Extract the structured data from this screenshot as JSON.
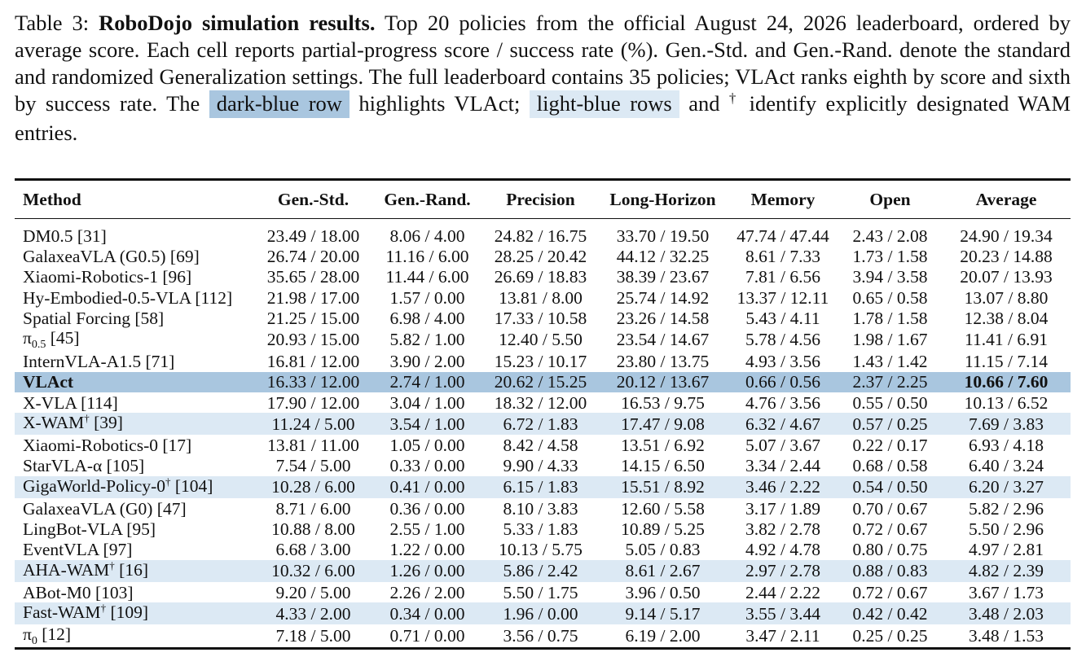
{
  "caption": {
    "label": "Table 3:",
    "title": "RoboDojo simulation results.",
    "body": "Top 20 policies from the official August 24, 2026 leaderboard, ordered by average score. Each cell reports partial-progress score / success rate (%). Gen.-Std. and Gen.-Rand. denote the standard and randomized Generalization settings. The full leaderboard contains 35 policies; VLAct ranks eighth by score and sixth by success rate. The",
    "dark_label": "dark-blue row",
    "mid": "highlights VLAct;",
    "light_label": "light-blue rows",
    "and": "and",
    "dagger": "†",
    "tail": "identify explicitly designated WAM entries."
  },
  "colors": {
    "dark_row": "#a9c6df",
    "light_row": "#dce9f4"
  },
  "table": {
    "headers": [
      "Method",
      "Gen.-Std.",
      "Gen.-Rand.",
      "Precision",
      "Long-Horizon",
      "Memory",
      "Open",
      "Average"
    ],
    "rows": [
      {
        "name": "DM0.5",
        "sub": "",
        "ref": " [31]",
        "cells": [
          "23.49 / 18.00",
          "8.06 / 4.00",
          "24.82 / 16.75",
          "33.70 / 19.50",
          "47.74 / 47.44",
          "2.43 / 2.08",
          "24.90 / 19.34"
        ],
        "style": "plain"
      },
      {
        "name": "GalaxeaVLA (G0.5)",
        "sub": "",
        "ref": " [69]",
        "cells": [
          "26.74 / 20.00",
          "11.16 / 6.00",
          "28.25 / 20.42",
          "44.12 / 32.25",
          "8.61 / 7.33",
          "1.73 / 1.58",
          "20.23 / 14.88"
        ],
        "style": "plain"
      },
      {
        "name": "Xiaomi-Robotics-1",
        "sub": "",
        "ref": " [96]",
        "cells": [
          "35.65 / 28.00",
          "11.44 / 6.00",
          "26.69 / 18.83",
          "38.39 / 23.67",
          "7.81 / 6.56",
          "3.94 / 3.58",
          "20.07 / 13.93"
        ],
        "style": "plain"
      },
      {
        "name": "Hy-Embodied-0.5-VLA",
        "sub": "",
        "ref": " [112]",
        "cells": [
          "21.98 / 17.00",
          "1.57 / 0.00",
          "13.81 / 8.00",
          "25.74 / 14.92",
          "13.37 / 12.11",
          "0.65 / 0.58",
          "13.07 / 8.80"
        ],
        "style": "plain"
      },
      {
        "name": "Spatial Forcing",
        "sub": "",
        "ref": " [58]",
        "cells": [
          "21.25 / 15.00",
          "6.98 / 4.00",
          "17.33 / 10.58",
          "23.26 / 14.58",
          "5.43 / 4.11",
          "1.78 / 1.58",
          "12.38 / 8.04"
        ],
        "style": "plain"
      },
      {
        "name": "π",
        "sub": "0.5",
        "ref": " [45]",
        "cells": [
          "20.93 / 15.00",
          "5.82 / 1.00",
          "12.40 / 5.50",
          "23.54 / 14.67",
          "5.78 / 4.56",
          "1.98 / 1.67",
          "11.41 / 6.91"
        ],
        "style": "plain"
      },
      {
        "name": "InternVLA-A1.5",
        "sub": "",
        "ref": " [71]",
        "cells": [
          "16.81 / 12.00",
          "3.90 / 2.00",
          "15.23 / 10.17",
          "23.80 / 13.75",
          "4.93 / 3.56",
          "1.43 / 1.42",
          "11.15 / 7.14"
        ],
        "style": "plain"
      },
      {
        "name": "VLAct",
        "sub": "",
        "ref": "",
        "cells": [
          "16.33 / 12.00",
          "2.74 / 1.00",
          "20.62 / 15.25",
          "20.12 / 13.67",
          "0.66 / 0.56",
          "2.37 / 2.25",
          "10.66 / 7.60"
        ],
        "style": "self"
      },
      {
        "name": "X-VLA",
        "sub": "",
        "ref": " [114]",
        "cells": [
          "17.90 / 12.00",
          "3.04 / 1.00",
          "18.32 / 12.00",
          "16.53 / 9.75",
          "4.76 / 3.56",
          "0.55 / 0.50",
          "10.13 / 6.52"
        ],
        "style": "plain"
      },
      {
        "name": "X-WAM",
        "sub": "",
        "ref": " [39]",
        "cells": [
          "11.24 / 5.00",
          "3.54 / 1.00",
          "6.72 / 1.83",
          "17.47 / 9.08",
          "6.32 / 4.67",
          "0.57 / 0.25",
          "7.69 / 3.83"
        ],
        "style": "wam"
      },
      {
        "name": "Xiaomi-Robotics-0",
        "sub": "",
        "ref": " [17]",
        "cells": [
          "13.81 / 11.00",
          "1.05 / 0.00",
          "8.42 / 4.58",
          "13.51 / 6.92",
          "5.07 / 3.67",
          "0.22 / 0.17",
          "6.93 / 4.18"
        ],
        "style": "plain"
      },
      {
        "name": "StarVLA-α",
        "sub": "",
        "ref": " [105]",
        "cells": [
          "7.54 / 5.00",
          "0.33 / 0.00",
          "9.90 / 4.33",
          "14.15 / 6.50",
          "3.34 / 2.44",
          "0.68 / 0.58",
          "6.40 / 3.24"
        ],
        "style": "plain"
      },
      {
        "name": "GigaWorld-Policy-0",
        "sub": "",
        "ref": " [104]",
        "cells": [
          "10.28 / 6.00",
          "0.41 / 0.00",
          "6.15 / 1.83",
          "15.51 / 8.92",
          "3.46 / 2.22",
          "0.54 / 0.50",
          "6.20 / 3.27"
        ],
        "style": "wam"
      },
      {
        "name": "GalaxeaVLA (G0)",
        "sub": "",
        "ref": " [47]",
        "cells": [
          "8.71 / 6.00",
          "0.36 / 0.00",
          "8.10 / 3.83",
          "12.60 / 5.58",
          "3.17 / 1.89",
          "0.70 / 0.67",
          "5.82 / 2.96"
        ],
        "style": "plain"
      },
      {
        "name": "LingBot-VLA",
        "sub": "",
        "ref": " [95]",
        "cells": [
          "10.88 / 8.00",
          "2.55 / 1.00",
          "5.33 / 1.83",
          "10.89 / 5.25",
          "3.82 / 2.78",
          "0.72 / 0.67",
          "5.50 / 2.96"
        ],
        "style": "plain"
      },
      {
        "name": "EventVLA",
        "sub": "",
        "ref": " [97]",
        "cells": [
          "6.68 / 3.00",
          "1.22 / 0.00",
          "10.13 / 5.75",
          "5.05 / 0.83",
          "4.92 / 4.78",
          "0.80 / 0.75",
          "4.97 / 2.81"
        ],
        "style": "plain"
      },
      {
        "name": "AHA-WAM",
        "sub": "",
        "ref": " [16]",
        "cells": [
          "10.32 / 6.00",
          "1.26 / 0.00",
          "5.86 / 2.42",
          "8.61 / 2.67",
          "2.97 / 2.78",
          "0.88 / 0.83",
          "4.82 / 2.39"
        ],
        "style": "wam"
      },
      {
        "name": "ABot-M0",
        "sub": "",
        "ref": " [103]",
        "cells": [
          "9.20 / 5.00",
          "2.26 / 2.00",
          "5.50 / 1.75",
          "3.96 / 0.50",
          "2.44 / 2.22",
          "0.72 / 0.67",
          "3.67 / 1.73"
        ],
        "style": "plain"
      },
      {
        "name": "Fast-WAM",
        "sub": "",
        "ref": " [109]",
        "cells": [
          "4.33 / 2.00",
          "0.34 / 0.00",
          "1.96 / 0.00",
          "9.14 / 5.17",
          "3.55 / 3.44",
          "0.42 / 0.42",
          "3.48 / 2.03"
        ],
        "style": "wam"
      },
      {
        "name": "π",
        "sub": "0",
        "ref": " [12]",
        "cells": [
          "7.18 / 5.00",
          "0.71 / 0.00",
          "3.56 / 0.75",
          "6.19 / 2.00",
          "3.47 / 2.11",
          "0.25 / 0.25",
          "3.48 / 1.53"
        ],
        "style": "plain"
      }
    ]
  }
}
